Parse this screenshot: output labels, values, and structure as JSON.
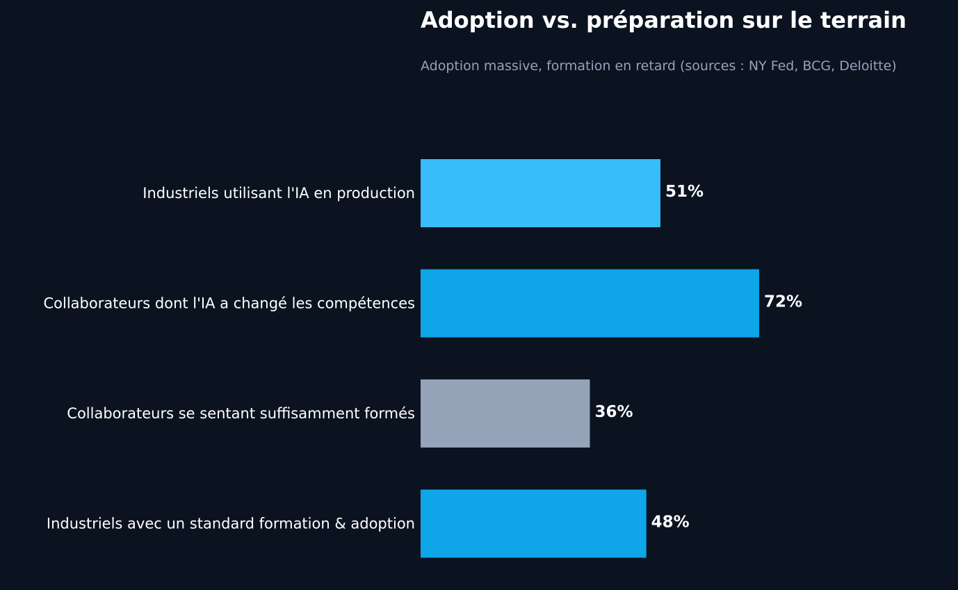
{
  "chart_data": {
    "type": "bar",
    "orientation": "horizontal",
    "title": "Adoption vs. préparation sur le terrain",
    "subtitle": "Adoption massive, formation en retard (sources : NY Fed, BCG, Deloitte)",
    "categories": [
      "Industriels utilisant l'IA en production",
      "Collaborateurs dont l'IA a changé les compétences",
      "Collaborateurs se sentant suffisamment formés",
      "Industriels avec un standard formation & adoption"
    ],
    "values": [
      51,
      72,
      36,
      48
    ],
    "data_labels": [
      "51%",
      "72%",
      "36%",
      "48%"
    ],
    "bar_colors": [
      "#38bdf8",
      "#0ea5e9",
      "#94a3b8",
      "#0ea5e9"
    ],
    "xlim": [
      0,
      100
    ],
    "xlabel": "",
    "ylabel": "",
    "grid": false,
    "legend": "none"
  },
  "colors": {
    "background": "#0b1320",
    "title": "#ffffff",
    "subtitle": "#94a3b8",
    "category_label": "#ffffff",
    "value_label": "#ffffff"
  }
}
